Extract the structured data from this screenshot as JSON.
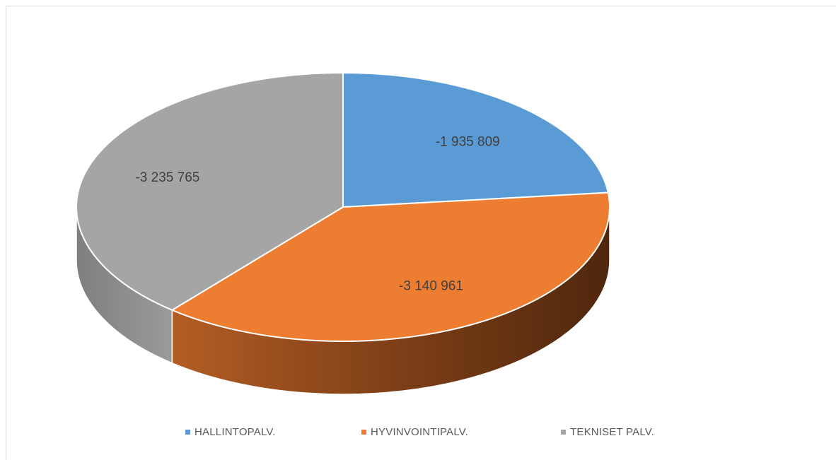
{
  "chart_data": {
    "type": "pie",
    "style": "3d",
    "categories": [
      "HALLINTOPALV.",
      "HYVINVOINTIPALV.",
      "TEKNISET PALV."
    ],
    "values": [
      -1935809,
      -3140961,
      -3235765
    ],
    "data_labels": [
      "-1 935 809",
      "-3 140 961",
      "-3 235 765"
    ],
    "colors": [
      "#5b9bd5",
      "#ed7d31",
      "#a5a5a5"
    ],
    "legend_position": "bottom"
  }
}
